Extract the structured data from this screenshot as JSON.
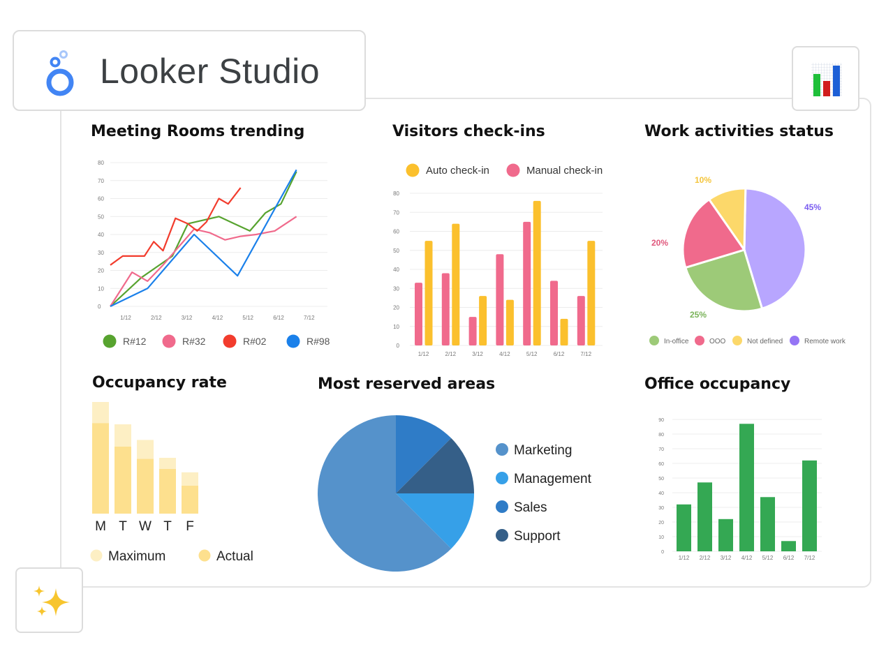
{
  "app": {
    "name": "Looker Studio"
  },
  "icons": {
    "logo": "looker-studio-logo-icon",
    "chart": "bar-chart-icon",
    "sparkle": "sparkles-icon"
  },
  "charts": [
    {
      "id": "meeting-rooms",
      "type": "line",
      "title": "Meeting Rooms trending",
      "x": [
        "1/12",
        "2/12",
        "3/12",
        "4/12",
        "5/12",
        "6/12",
        "7/12"
      ],
      "ylim": [
        0,
        80
      ],
      "yticks": [
        0,
        10,
        20,
        30,
        40,
        50,
        60,
        70,
        80
      ],
      "xlim": [
        0.5,
        7.5
      ],
      "legend": "bottom",
      "grid": true,
      "series": [
        {
          "name": "R#12",
          "color": "#57a32f",
          "points": [
            [
              0.5,
              0
            ],
            [
              1,
              8
            ],
            [
              1.5,
              16
            ],
            [
              2,
              22
            ],
            [
              2.5,
              28
            ],
            [
              3,
              46
            ],
            [
              3.5,
              48
            ],
            [
              4,
              50
            ],
            [
              4.5,
              46
            ],
            [
              5,
              42
            ],
            [
              5.5,
              52
            ],
            [
              6,
              57
            ],
            [
              6.5,
              75
            ]
          ]
        },
        {
          "name": "R#32",
          "color": "#f06a8c",
          "points": [
            [
              0.5,
              0
            ],
            [
              1.2,
              19
            ],
            [
              1.7,
              14
            ],
            [
              2.2,
              23
            ],
            [
              2.7,
              33
            ],
            [
              3.2,
              43
            ],
            [
              3.7,
              41
            ],
            [
              4.2,
              37
            ],
            [
              4.7,
              39
            ],
            [
              5.2,
              40
            ],
            [
              5.8,
              42
            ],
            [
              6.5,
              50
            ]
          ]
        },
        {
          "name": "R#02",
          "color": "#f23c2d",
          "points": [
            [
              0.5,
              23
            ],
            [
              0.9,
              28
            ],
            [
              1.6,
              28
            ],
            [
              1.9,
              36
            ],
            [
              2.2,
              31
            ],
            [
              2.6,
              49
            ],
            [
              3,
              46
            ],
            [
              3.3,
              42
            ],
            [
              3.6,
              47
            ],
            [
              4,
              60
            ],
            [
              4.3,
              57
            ],
            [
              4.7,
              66
            ]
          ]
        },
        {
          "name": "R#98",
          "color": "#1a80ea",
          "points": [
            [
              0.5,
              0
            ],
            [
              1.7,
              10
            ],
            [
              3.2,
              40
            ],
            [
              4.6,
              17
            ],
            [
              6.5,
              76
            ]
          ]
        }
      ]
    },
    {
      "id": "visitors",
      "type": "bar",
      "title": "Visitors check-ins",
      "categories": [
        "1/12",
        "2/12",
        "3/12",
        "4/12",
        "5/12",
        "6/12",
        "7/12"
      ],
      "ylim": [
        0,
        80
      ],
      "yticks": [
        0,
        10,
        20,
        30,
        40,
        50,
        60,
        70,
        80
      ],
      "legend": "top",
      "grid": true,
      "series": [
        {
          "name": "Manual check-in",
          "color": "#f06a8c",
          "values": [
            33,
            38,
            15,
            48,
            65,
            34,
            26
          ]
        },
        {
          "name": "Auto check-in",
          "color": "#fbc02d",
          "values": [
            55,
            64,
            26,
            24,
            76,
            14,
            55
          ]
        }
      ],
      "legend_order": [
        "Auto check-in",
        "Manual check-in"
      ]
    },
    {
      "id": "work-activities",
      "type": "pie",
      "title": "Work activities status",
      "legend": "bottom",
      "slices": [
        {
          "name": "Remote work",
          "value": 45,
          "label": "45%",
          "color": "#b8a6ff",
          "label_color": "#7a5cf0"
        },
        {
          "name": "In-office",
          "value": 25,
          "label": "25%",
          "color": "#9dca78",
          "label_color": "#7ab35a"
        },
        {
          "name": "OOO",
          "value": 20,
          "label": "20%",
          "color": "#f06a8c",
          "label_color": "#e0577c"
        },
        {
          "name": "Not defined",
          "value": 10,
          "label": "10%",
          "color": "#fcd86a",
          "label_color": "#f4c53c"
        }
      ],
      "legend_items": [
        {
          "name": "In-office",
          "color": "#9dca78"
        },
        {
          "name": "OOO",
          "color": "#f06a8c"
        },
        {
          "name": "Not defined",
          "color": "#fcd86a"
        },
        {
          "name": "Remote work",
          "color": "#9575f5"
        }
      ]
    },
    {
      "id": "occupancy-rate",
      "type": "bar",
      "title": "Occupancy rate",
      "categories": [
        "M",
        "T",
        "W",
        "T",
        "F"
      ],
      "ylim": [
        0,
        100
      ],
      "legend": "bottom",
      "grid": false,
      "series": [
        {
          "name": "Maximum",
          "color": "#fdefc4",
          "values": [
            100,
            80,
            66,
            50,
            37
          ]
        },
        {
          "name": "Actual",
          "color": "#fde08e",
          "values": [
            81,
            60,
            49,
            40,
            25
          ]
        }
      ]
    },
    {
      "id": "reserved-areas",
      "type": "pie",
      "title": "Most reserved areas",
      "legend": "right",
      "slices": [
        {
          "name": "Sales",
          "value": 12.5,
          "color": "#2f7cc7"
        },
        {
          "name": "Support",
          "value": 12.5,
          "color": "#355f88"
        },
        {
          "name": "Management",
          "value": 12.5,
          "color": "#36a0e8"
        },
        {
          "name": "Marketing",
          "value": 62.5,
          "color": "#5592cb"
        }
      ],
      "legend_items": [
        {
          "name": "Marketing",
          "color": "#5592cb"
        },
        {
          "name": "Management",
          "color": "#36a0e8"
        },
        {
          "name": "Sales",
          "color": "#2f7cc7"
        },
        {
          "name": "Support",
          "color": "#355f88"
        }
      ]
    },
    {
      "id": "office-occupancy",
      "type": "bar",
      "title": "Office occupancy",
      "categories": [
        "1/12",
        "2/12",
        "3/12",
        "4/12",
        "5/12",
        "6/12",
        "7/12"
      ],
      "ylim": [
        0,
        90
      ],
      "yticks": [
        0,
        10,
        20,
        30,
        40,
        50,
        60,
        70,
        80,
        90
      ],
      "legend": "none",
      "grid": true,
      "series": [
        {
          "name": "",
          "color": "#34a853",
          "values": [
            32,
            47,
            22,
            87,
            37,
            7,
            62
          ]
        }
      ]
    }
  ]
}
